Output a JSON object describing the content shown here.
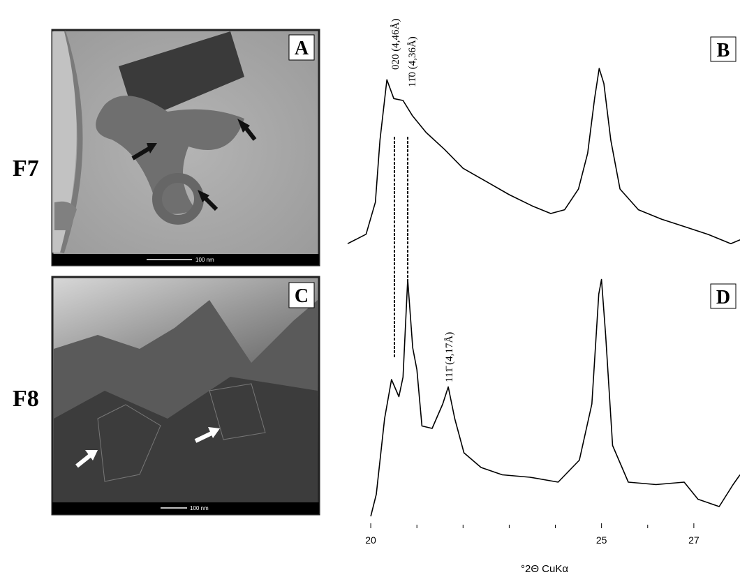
{
  "rows": [
    {
      "label": "F7"
    },
    {
      "label": "F8"
    }
  ],
  "images": [
    {
      "label": "A",
      "scale_bar": "100 nm"
    },
    {
      "label": "C",
      "scale_bar": "100 nm"
    }
  ],
  "chart_data": {
    "type": "line",
    "xlabel": "°2Θ CuKα",
    "xlim": [
      19.5,
      28.0
    ],
    "xticks": [
      20,
      25,
      27
    ],
    "minor_xticks": [
      21,
      22,
      23,
      24,
      26
    ],
    "ylim": [
      0,
      100
    ],
    "annotations": [
      "020 (4,46Å)",
      "11̄0 (4,36Å)",
      "111̄ (4,17Å)"
    ],
    "series": [
      {
        "name": "B",
        "color": "#000000",
        "x": [
          19.5,
          19.9,
          20.1,
          20.2,
          20.35,
          20.5,
          20.7,
          20.9,
          21.2,
          21.6,
          22.0,
          22.5,
          23.0,
          23.5,
          23.9,
          24.2,
          24.5,
          24.7,
          24.85,
          24.95,
          25.05,
          25.2,
          25.4,
          25.8,
          26.3,
          26.8,
          27.3,
          27.8,
          28.0
        ],
        "values": [
          4,
          9,
          26,
          59,
          91,
          81,
          80,
          72,
          63,
          54,
          44,
          37,
          30,
          24,
          20,
          22,
          33,
          52,
          81,
          97,
          89,
          59,
          33,
          22,
          17,
          13,
          9,
          4,
          6
        ]
      },
      {
        "name": "D",
        "color": "#000000",
        "x": [
          20.0,
          20.12,
          20.3,
          20.45,
          20.61,
          20.7,
          20.8,
          20.91,
          21.0,
          21.11,
          21.33,
          21.56,
          21.68,
          21.82,
          22.02,
          22.39,
          22.85,
          23.45,
          24.06,
          24.52,
          24.79,
          24.94,
          25.0,
          25.09,
          25.24,
          25.58,
          26.18,
          26.79,
          27.09,
          27.55,
          27.85,
          28.0
        ],
        "values": [
          0,
          9,
          40,
          56,
          49,
          57,
          97,
          69,
          60,
          37,
          36,
          46,
          53,
          40,
          26,
          20,
          17,
          16,
          14,
          23,
          46,
          91,
          97,
          74,
          29,
          14,
          13,
          14,
          7,
          4,
          13,
          17
        ]
      }
    ]
  }
}
